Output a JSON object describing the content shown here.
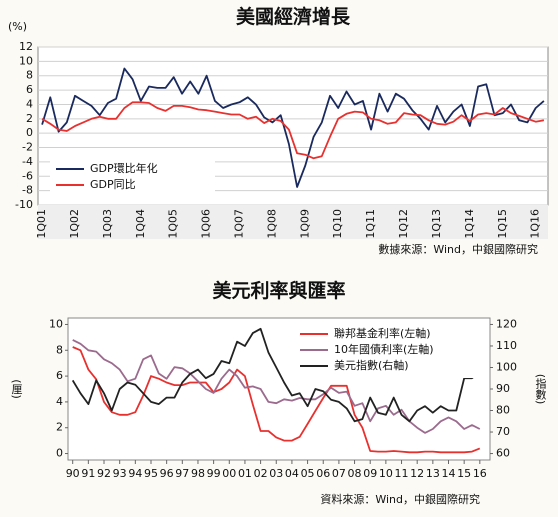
{
  "chart_data": [
    {
      "type": "line",
      "title": "美國經濟增長",
      "y_label": "(%)",
      "source": "數據來源：Wind，中銀國際研究",
      "categories": [
        "1Q01",
        null,
        null,
        null,
        "1Q02",
        null,
        null,
        null,
        "1Q03",
        null,
        null,
        null,
        "1Q04",
        null,
        null,
        null,
        "1Q05",
        null,
        null,
        null,
        "1Q06",
        null,
        null,
        null,
        "1Q07",
        null,
        null,
        null,
        "1Q08",
        null,
        null,
        null,
        "1Q09",
        null,
        null,
        null,
        "1Q10",
        null,
        null,
        null,
        "1Q11",
        null,
        null,
        null,
        "1Q12",
        null,
        null,
        null,
        "1Q13",
        null,
        null,
        null,
        "1Q14",
        null,
        null,
        null,
        "1Q15",
        null,
        null,
        null,
        "1Q16",
        null
      ],
      "series": [
        {
          "name": "GDP環比年化",
          "color": "#1a2a5e",
          "values": [
            1.2,
            5.0,
            0.2,
            1.5,
            5.2,
            4.5,
            3.8,
            2.5,
            4.2,
            4.8,
            9.0,
            7.5,
            4.5,
            6.5,
            6.3,
            6.3,
            7.8,
            5.5,
            7.2,
            5.5,
            8.0,
            4.5,
            3.5,
            4.0,
            4.3,
            5.0,
            4.0,
            2.2,
            1.5,
            2.5,
            -1.5,
            -7.5,
            -4.5,
            -0.5,
            1.5,
            5.2,
            3.5,
            5.8,
            4.0,
            4.5,
            0.5,
            5.5,
            3.0,
            5.5,
            4.8,
            3.2,
            2.0,
            0.5,
            3.8,
            1.5,
            3.0,
            4.0,
            1.0,
            6.5,
            6.8,
            2.5,
            2.8,
            4.0,
            1.8,
            1.5,
            3.5,
            4.5
          ]
        },
        {
          "name": "GDP同比",
          "color": "#e8312f",
          "values": [
            2.0,
            1.3,
            0.5,
            0.3,
            1.0,
            1.5,
            2.0,
            2.3,
            2.0,
            2.0,
            3.5,
            4.3,
            4.3,
            4.2,
            3.5,
            3.1,
            3.8,
            3.8,
            3.6,
            3.3,
            3.2,
            3.0,
            2.8,
            2.6,
            2.6,
            2.0,
            2.3,
            1.4,
            2.0,
            1.7,
            0.5,
            -2.8,
            -3.0,
            -3.5,
            -3.2,
            -0.5,
            2.0,
            2.7,
            3.0,
            2.9,
            2.0,
            1.8,
            1.3,
            1.5,
            2.8,
            2.6,
            2.5,
            1.8,
            1.3,
            1.2,
            1.6,
            2.5,
            1.7,
            2.6,
            2.8,
            2.6,
            3.5,
            2.8,
            2.4,
            2.0,
            1.6,
            1.8
          ]
        }
      ],
      "ylim": [
        -10,
        12
      ],
      "yticks": [
        -10,
        -8,
        -6,
        -4,
        -2,
        0,
        2,
        4,
        6,
        8,
        10,
        12
      ],
      "grid": true,
      "legend": "lower left"
    },
    {
      "type": "line",
      "title": "美元利率與匯率",
      "y_label": "(厘)",
      "y2_label": "(指數)",
      "source": "資料來源：Wind，中銀國際研究",
      "x": [
        1990,
        1990.5,
        1991,
        1991.5,
        1992,
        1992.5,
        1993,
        1993.5,
        1994,
        1994.5,
        1995,
        1995.5,
        1996,
        1996.5,
        1997,
        1997.5,
        1998,
        1998.5,
        1999,
        1999.5,
        2000,
        2000.5,
        2001,
        2001.5,
        2002,
        2002.5,
        2003,
        2003.5,
        2004,
        2004.5,
        2005,
        2005.5,
        2006,
        2006.5,
        2007,
        2007.5,
        2008,
        2008.5,
        2009,
        2009.5,
        2010,
        2010.5,
        2011,
        2011.5,
        2012,
        2012.5,
        2013,
        2013.5,
        2014,
        2014.5,
        2015,
        2015.5,
        2016
      ],
      "series": [
        {
          "name": "聯邦基金利率(左軸)",
          "color": "#e8312f",
          "values": [
            8.25,
            8.0,
            6.5,
            5.75,
            4.0,
            3.2,
            3.0,
            3.0,
            3.2,
            4.5,
            6.0,
            5.8,
            5.5,
            5.3,
            5.3,
            5.5,
            5.5,
            5.5,
            4.75,
            5.0,
            5.5,
            6.5,
            6.0,
            3.8,
            1.75,
            1.75,
            1.25,
            1.0,
            1.0,
            1.3,
            2.3,
            3.3,
            4.3,
            5.25,
            5.25,
            5.25,
            3.0,
            2.0,
            0.2,
            0.15,
            0.15,
            0.2,
            0.15,
            0.1,
            0.1,
            0.15,
            0.15,
            0.1,
            0.1,
            0.1,
            0.1,
            0.15,
            0.4
          ]
        },
        {
          "name": "10年國債利率(左軸)",
          "color": "#9b6b8e",
          "values": [
            8.8,
            8.5,
            8.0,
            7.9,
            7.3,
            7.0,
            6.5,
            5.6,
            5.8,
            7.3,
            7.6,
            6.2,
            5.8,
            6.7,
            6.6,
            6.2,
            5.6,
            5.0,
            4.7,
            5.8,
            6.5,
            6.0,
            5.1,
            5.2,
            5.0,
            4.0,
            3.9,
            4.2,
            4.1,
            4.3,
            4.2,
            4.2,
            4.6,
            5.1,
            4.7,
            4.8,
            3.7,
            3.9,
            2.5,
            3.5,
            3.7,
            3.0,
            3.4,
            2.5,
            2.0,
            1.6,
            1.9,
            2.5,
            2.8,
            2.5,
            1.9,
            2.2,
            1.9
          ]
        },
        {
          "name": "美元指數(右軸)",
          "color": "#222222",
          "axis": "y2",
          "values": [
            94,
            88,
            83,
            94,
            88,
            80,
            90,
            93,
            92,
            88,
            84,
            83,
            86,
            86,
            93,
            97,
            99,
            95,
            97,
            103,
            102,
            112,
            110,
            116,
            118,
            107,
            100,
            93,
            87,
            88,
            82,
            90,
            89,
            85,
            84,
            81,
            75,
            76,
            86,
            79,
            78,
            86,
            78,
            75,
            80,
            82,
            79,
            82,
            80,
            80,
            95,
            95,
            98
          ]
        }
      ],
      "xlim": [
        1989.7,
        2016.65
      ],
      "xticks": [
        {
          "value": 1990,
          "label": "90"
        },
        {
          "value": 1991,
          "label": "91"
        },
        {
          "value": 1992,
          "label": "92"
        },
        {
          "value": 1993,
          "label": "93"
        },
        {
          "value": 1994,
          "label": "94"
        },
        {
          "value": 1995,
          "label": "95"
        },
        {
          "value": 1996,
          "label": "96"
        },
        {
          "value": 1997,
          "label": "97"
        },
        {
          "value": 1998,
          "label": "98"
        },
        {
          "value": 1999,
          "label": "99"
        },
        {
          "value": 2000,
          "label": "00"
        },
        {
          "value": 2001,
          "label": "01"
        },
        {
          "value": 2002,
          "label": "02"
        },
        {
          "value": 2003,
          "label": "03"
        },
        {
          "value": 2004,
          "label": "04"
        },
        {
          "value": 2005,
          "label": "05"
        },
        {
          "value": 2006,
          "label": "06"
        },
        {
          "value": 2007,
          "label": "07"
        },
        {
          "value": 2008,
          "label": "08"
        },
        {
          "value": 2009,
          "label": "09"
        },
        {
          "value": 2010,
          "label": "10"
        },
        {
          "value": 2011,
          "label": "11"
        },
        {
          "value": 2012,
          "label": "12"
        },
        {
          "value": 2013,
          "label": "13"
        },
        {
          "value": 2014,
          "label": "14"
        },
        {
          "value": 2015,
          "label": "15"
        },
        {
          "value": 2016,
          "label": "16"
        }
      ],
      "ylim": [
        -0.5,
        10.5
      ],
      "yticks": [
        0,
        2,
        4,
        6,
        8,
        10
      ],
      "y2lim": [
        57,
        123
      ],
      "y2ticks": [
        60,
        70,
        80,
        90,
        100,
        110,
        120
      ],
      "grid": false,
      "legend": "upper right"
    }
  ]
}
